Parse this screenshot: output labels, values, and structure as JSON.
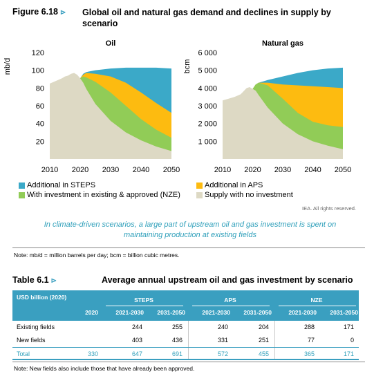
{
  "figure": {
    "label": "Figure 6.18",
    "arrow": "⊳",
    "title": "Global oil and natural gas demand and declines in supply by scenario",
    "colors": {
      "steps": "#3ba9c8",
      "aps": "#fdbb10",
      "nze": "#91cc57",
      "no_investment": "#ddd9c4"
    },
    "legend": [
      {
        "label": "Additional in STEPS",
        "series": "steps"
      },
      {
        "label": "Additional in APS",
        "series": "aps"
      },
      {
        "label": "With investment in existing & approved (NZE)",
        "series": "nze"
      },
      {
        "label": "Supply with no investment",
        "series": "no_investment"
      }
    ],
    "rights": "IEA. All rights reserved.",
    "caption": "In climate-driven scenarios, a large part of upstream oil and gas investment is spent on maintaining production at existing fields",
    "note": "Note:  mb/d = million barrels per day; bcm = billion cubic metres."
  },
  "chart_data": [
    {
      "type": "area",
      "title": "Oil",
      "ylabel": "mb/d",
      "ylim": [
        0,
        120
      ],
      "xlim": [
        2010,
        2050
      ],
      "yticks": [
        "20",
        "40",
        "60",
        "80",
        "100",
        "120"
      ],
      "xticks": [
        "2010",
        "2020",
        "2030",
        "2040",
        "2050"
      ],
      "history": {
        "x": [
          2010,
          2012,
          2014,
          2015,
          2016,
          2017,
          2018,
          2019,
          2020
        ],
        "y": [
          85,
          88,
          91,
          93,
          94,
          96,
          97,
          95,
          91
        ]
      },
      "x": [
        2020,
        2021,
        2022,
        2025,
        2030,
        2035,
        2040,
        2045,
        2050
      ],
      "series": [
        {
          "name": "Supply with no investment",
          "key": "no_investment",
          "values": [
            91,
            86,
            79,
            62,
            43,
            30,
            21,
            14,
            9
          ]
        },
        {
          "name": "With investment in existing & approved (NZE)",
          "key": "nze",
          "values": [
            91,
            93,
            92,
            87,
            75,
            60,
            45,
            33,
            24
          ]
        },
        {
          "name": "Additional in APS",
          "key": "aps",
          "values": [
            91,
            95,
            97,
            96,
            93,
            86,
            75,
            63,
            52
          ]
        },
        {
          "name": "Additional in STEPS",
          "key": "steps",
          "values": [
            91,
            96,
            98,
            100,
            102,
            103,
            103,
            103,
            102
          ]
        }
      ]
    },
    {
      "type": "area",
      "title": "Natural gas",
      "ylabel": "bcm",
      "ylim": [
        0,
        6000
      ],
      "xlim": [
        2010,
        2050
      ],
      "yticks": [
        "1 000",
        "2 000",
        "3 000",
        "4 000",
        "5 000",
        "6 000"
      ],
      "xticks": [
        "2010",
        "2020",
        "2030",
        "2040",
        "2050"
      ],
      "history": {
        "x": [
          2010,
          2012,
          2014,
          2016,
          2018,
          2019,
          2020
        ],
        "y": [
          3300,
          3400,
          3500,
          3650,
          4000,
          4050,
          3950
        ]
      },
      "x": [
        2020,
        2021,
        2022,
        2025,
        2030,
        2035,
        2040,
        2045,
        2050
      ],
      "series": [
        {
          "name": "Supply with no investment",
          "key": "no_investment",
          "values": [
            3950,
            3850,
            3600,
            2900,
            2000,
            1400,
            1000,
            750,
            550
          ]
        },
        {
          "name": "With investment in existing & approved (NZE)",
          "key": "nze",
          "values": [
            3950,
            4200,
            4300,
            4150,
            3400,
            2600,
            2100,
            1900,
            1800
          ]
        },
        {
          "name": "Additional in APS",
          "key": "aps",
          "values": [
            3950,
            4200,
            4300,
            4300,
            4200,
            4150,
            4100,
            4050,
            4000
          ]
        },
        {
          "name": "Additional in STEPS",
          "key": "steps",
          "values": [
            3950,
            4200,
            4300,
            4450,
            4650,
            4850,
            5000,
            5100,
            5150
          ]
        }
      ]
    }
  ],
  "table": {
    "label": "Table 6.1",
    "arrow": "⊳",
    "title": "Average annual upstream oil and gas investment by scenario",
    "corner_label": "USD billion (2020)",
    "base_year": "2020",
    "groups": [
      "STEPS",
      "APS",
      "NZE"
    ],
    "periods": [
      "2021-2030",
      "2031-2050",
      "2021-2030",
      "2031-2050",
      "2021-2030",
      "2031-2050"
    ],
    "rows": [
      {
        "label": "Existing fields",
        "values": [
          "",
          "244",
          "255",
          "240",
          "204",
          "288",
          "171"
        ]
      },
      {
        "label": "New fields",
        "values": [
          "",
          "403",
          "436",
          "331",
          "251",
          "77",
          "0"
        ]
      },
      {
        "label": "Total",
        "values": [
          "330",
          "647",
          "691",
          "572",
          "455",
          "365",
          "171"
        ]
      }
    ],
    "note": "Note: New fields also include those that have already been approved."
  }
}
